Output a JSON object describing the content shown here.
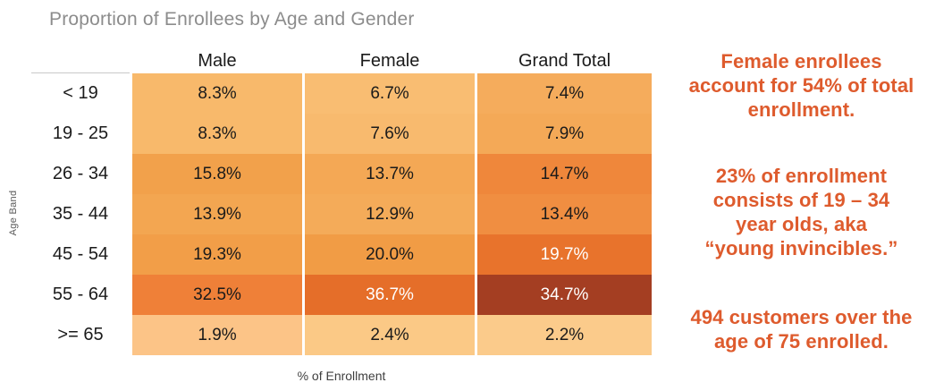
{
  "title": "Proportion of Enrollees by Age and Gender",
  "axes": {
    "y_label": "Age Band",
    "x_label": "% of Enrollment"
  },
  "table": {
    "columns": [
      "Male",
      "Female",
      "Grand Total"
    ],
    "rows": [
      {
        "label": "< 19",
        "cells": [
          {
            "text": "8.3%",
            "bg": "#F8B96B",
            "fg": "#1A1A1A"
          },
          {
            "text": "6.7%",
            "bg": "#F9BD72",
            "fg": "#1A1A1A"
          },
          {
            "text": "7.4%",
            "bg": "#F5AC5C",
            "fg": "#1A1A1A"
          }
        ]
      },
      {
        "label": "19 - 25",
        "cells": [
          {
            "text": "8.3%",
            "bg": "#F8B96B",
            "fg": "#1A1A1A"
          },
          {
            "text": "7.6%",
            "bg": "#F8BA6E",
            "fg": "#1A1A1A"
          },
          {
            "text": "7.9%",
            "bg": "#F4A957",
            "fg": "#1A1A1A"
          }
        ]
      },
      {
        "label": "26 - 34",
        "cells": [
          {
            "text": "15.8%",
            "bg": "#F2A14B",
            "fg": "#1A1A1A"
          },
          {
            "text": "13.7%",
            "bg": "#F4A855",
            "fg": "#1A1A1A"
          },
          {
            "text": "14.7%",
            "bg": "#EF873B",
            "fg": "#1A1A1A"
          }
        ]
      },
      {
        "label": "35 - 44",
        "cells": [
          {
            "text": "13.9%",
            "bg": "#F3A651",
            "fg": "#1A1A1A"
          },
          {
            "text": "12.9%",
            "bg": "#F4AB59",
            "fg": "#1A1A1A"
          },
          {
            "text": "13.4%",
            "bg": "#F08E41",
            "fg": "#1A1A1A"
          }
        ]
      },
      {
        "label": "45 - 54",
        "cells": [
          {
            "text": "19.3%",
            "bg": "#F29E48",
            "fg": "#1A1A1A"
          },
          {
            "text": "20.0%",
            "bg": "#F19C45",
            "fg": "#1A1A1A"
          },
          {
            "text": "19.7%",
            "bg": "#E8732C",
            "fg": "#FFFFFF"
          }
        ]
      },
      {
        "label": "55 - 64",
        "cells": [
          {
            "text": "32.5%",
            "bg": "#EF8038",
            "fg": "#1A1A1A"
          },
          {
            "text": "36.7%",
            "bg": "#E56E29",
            "fg": "#FFFFFF"
          },
          {
            "text": "34.7%",
            "bg": "#A43E22",
            "fg": "#FFFFFF"
          }
        ]
      },
      {
        "label": ">= 65",
        "cells": [
          {
            "text": "1.9%",
            "bg": "#FCC487",
            "fg": "#1A1A1A"
          },
          {
            "text": "2.4%",
            "bg": "#FBC986",
            "fg": "#1A1A1A"
          },
          {
            "text": "2.2%",
            "bg": "#FBCB8B",
            "fg": "#1A1A1A"
          }
        ]
      }
    ]
  },
  "annotations": {
    "color": "#DE5B2D",
    "blocks": [
      {
        "lines": [
          "Female enrollees",
          "account for 54% of total",
          "enrollment."
        ]
      },
      {
        "lines": [
          "23% of enrollment",
          "consists of 19 – 34",
          "year olds, aka",
          "“young invincibles.”"
        ]
      },
      {
        "lines": [
          "494 customers over the",
          "age of 75 enrolled."
        ]
      }
    ]
  },
  "chart_data": {
    "type": "heatmap",
    "title": "Proportion of Enrollees by Age and Gender",
    "xlabel": "% of Enrollment",
    "ylabel": "Age Band",
    "unit": "%",
    "categories": [
      "< 19",
      "19 - 25",
      "26 - 34",
      "35 - 44",
      "45 - 54",
      "55 - 64",
      ">= 65"
    ],
    "series": [
      {
        "name": "Male",
        "values": [
          8.3,
          8.3,
          15.8,
          13.9,
          19.3,
          32.5,
          1.9
        ]
      },
      {
        "name": "Female",
        "values": [
          6.7,
          7.6,
          13.7,
          12.9,
          20.0,
          36.7,
          2.4
        ]
      },
      {
        "name": "Grand Total",
        "values": [
          7.4,
          7.9,
          14.7,
          13.4,
          19.7,
          34.7,
          2.2
        ]
      }
    ],
    "color_scale": {
      "low": "#FCC487",
      "high": "#A43E22"
    },
    "legend": "none",
    "grid": "off",
    "annotations": [
      "Female enrollees account for 54% of total enrollment.",
      "23% of enrollment consists of 19 – 34 year olds, aka “young invincibles.”",
      "494 customers over the age of 75 enrolled."
    ]
  }
}
